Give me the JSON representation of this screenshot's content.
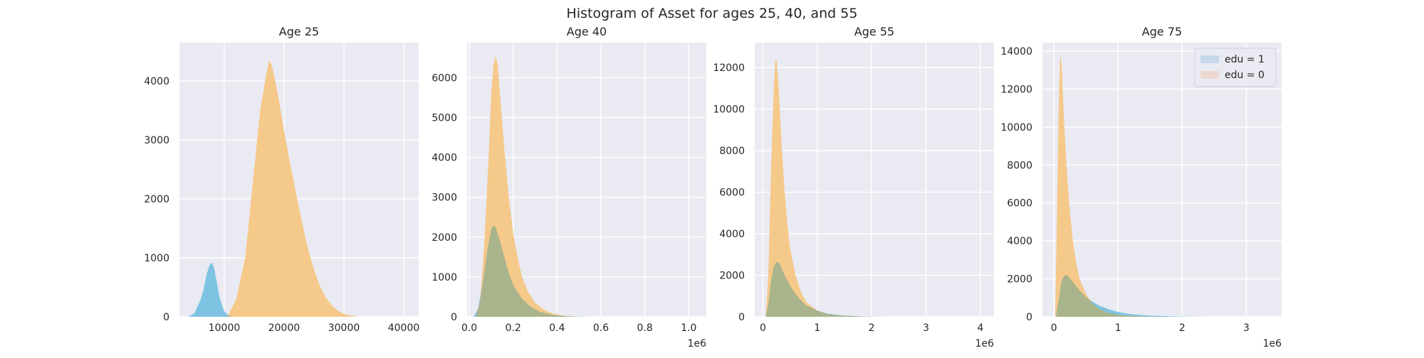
{
  "figure": {
    "suptitle": "Histogram of Asset for ages 25, 40, and 55"
  },
  "colors": {
    "edu1": "#7ec4e2",
    "edu0": "#f5c98a",
    "overlap": "#a9b48c",
    "plot_bg": "#eaeaf2",
    "grid": "#ffffff"
  },
  "legend": {
    "placement": "upper-right",
    "entries": [
      "edu = 1",
      "edu = 0"
    ],
    "swatch_colors": [
      "#c7d7ec",
      "#ecd8d2"
    ]
  },
  "chart_data": [
    {
      "type": "histogram",
      "title": "Age 25",
      "xlim": [
        2500,
        42500
      ],
      "ylim": [
        0,
        4650
      ],
      "xticks": [
        10000,
        20000,
        30000,
        40000
      ],
      "xtick_labels": [
        "10000",
        "20000",
        "30000",
        "40000"
      ],
      "yticks": [
        0,
        1000,
        2000,
        3000,
        4000
      ],
      "ytick_labels": [
        "0",
        "1000",
        "2000",
        "3000",
        "4000"
      ],
      "offset_label": "",
      "series": [
        {
          "name": "edu = 1",
          "x": [
            4000,
            5000,
            6000,
            6500,
            7000,
            7500,
            7900,
            8300,
            8800,
            9300,
            10000,
            10800,
            11500
          ],
          "y": [
            0,
            60,
            280,
            450,
            700,
            870,
            920,
            830,
            560,
            290,
            90,
            15,
            0
          ]
        },
        {
          "name": "edu = 0",
          "x": [
            10500,
            12000,
            13500,
            15000,
            16000,
            17000,
            17500,
            18000,
            19000,
            20000,
            21000,
            22000,
            23000,
            24000,
            25000,
            26000,
            27000,
            28000,
            29000,
            30000,
            31000,
            32500
          ],
          "y": [
            0,
            300,
            1000,
            2500,
            3500,
            4100,
            4350,
            4250,
            3750,
            3150,
            2600,
            2100,
            1600,
            1150,
            800,
            520,
            320,
            190,
            100,
            50,
            20,
            0
          ]
        }
      ]
    },
    {
      "type": "histogram",
      "title": "Age 40",
      "xlim": [
        -0.01,
        1.08
      ],
      "ylim": [
        0,
        6880
      ],
      "xticks": [
        0.0,
        0.2,
        0.4,
        0.6,
        0.8,
        1.0
      ],
      "xtick_labels": [
        "0.0",
        "0.2",
        "0.4",
        "0.6",
        "0.8",
        "1.0"
      ],
      "yticks": [
        0,
        1000,
        2000,
        3000,
        4000,
        5000,
        6000
      ],
      "ytick_labels": [
        "0",
        "1000",
        "2000",
        "3000",
        "4000",
        "5000",
        "6000"
      ],
      "offset_label": "1e6",
      "series": [
        {
          "name": "edu = 1",
          "x": [
            0.02,
            0.04,
            0.06,
            0.08,
            0.1,
            0.11,
            0.12,
            0.14,
            0.16,
            0.18,
            0.2,
            0.24,
            0.28,
            0.32,
            0.38,
            0.45,
            0.55
          ],
          "y": [
            0,
            200,
            800,
            1600,
            2200,
            2300,
            2250,
            1900,
            1500,
            1100,
            800,
            450,
            250,
            130,
            50,
            15,
            0
          ]
        },
        {
          "name": "edu = 0",
          "x": [
            0.03,
            0.05,
            0.07,
            0.09,
            0.1,
            0.11,
            0.12,
            0.13,
            0.14,
            0.16,
            0.18,
            0.2,
            0.22,
            0.24,
            0.27,
            0.3,
            0.34,
            0.38,
            0.44,
            0.5
          ],
          "y": [
            0,
            400,
            2000,
            4200,
            5600,
            6300,
            6550,
            6300,
            5600,
            4200,
            3000,
            2100,
            1500,
            1000,
            600,
            350,
            180,
            80,
            20,
            0
          ]
        }
      ]
    },
    {
      "type": "histogram",
      "title": "Age 55",
      "xlim": [
        -0.15,
        4.25
      ],
      "ylim": [
        0,
        13200
      ],
      "xticks": [
        0,
        1,
        2,
        3,
        4
      ],
      "xtick_labels": [
        "0",
        "1",
        "2",
        "3",
        "4"
      ],
      "yticks": [
        0,
        2000,
        4000,
        6000,
        8000,
        10000,
        12000
      ],
      "ytick_labels": [
        "0",
        "2000",
        "4000",
        "6000",
        "8000",
        "10000",
        "12000"
      ],
      "offset_label": "1e6",
      "series": [
        {
          "name": "edu = 1",
          "x": [
            0.05,
            0.1,
            0.15,
            0.2,
            0.25,
            0.3,
            0.35,
            0.4,
            0.5,
            0.6,
            0.7,
            0.8,
            1.0,
            1.2,
            1.5,
            1.8,
            2.2
          ],
          "y": [
            0,
            600,
            1700,
            2400,
            2650,
            2600,
            2300,
            2000,
            1500,
            1100,
            800,
            550,
            300,
            150,
            60,
            20,
            0
          ]
        },
        {
          "name": "edu = 0",
          "x": [
            0.05,
            0.1,
            0.15,
            0.2,
            0.23,
            0.25,
            0.28,
            0.3,
            0.35,
            0.4,
            0.45,
            0.5,
            0.6,
            0.7,
            0.8,
            1.0,
            1.2,
            1.5,
            2.0
          ],
          "y": [
            0,
            2000,
            7000,
            11000,
            12300,
            12400,
            11500,
            10500,
            8000,
            6000,
            4500,
            3300,
            2000,
            1200,
            700,
            300,
            120,
            40,
            0
          ]
        }
      ]
    },
    {
      "type": "histogram",
      "title": "Age 75",
      "xlim": [
        -0.18,
        3.55
      ],
      "ylim": [
        0,
        14450
      ],
      "xticks": [
        0,
        1,
        2,
        3
      ],
      "xtick_labels": [
        "0",
        "1",
        "2",
        "3"
      ],
      "yticks": [
        0,
        2000,
        4000,
        6000,
        8000,
        10000,
        12000,
        14000
      ],
      "ytick_labels": [
        "0",
        "2000",
        "4000",
        "6000",
        "8000",
        "10000",
        "12000",
        "14000"
      ],
      "offset_label": "1e6",
      "series": [
        {
          "name": "edu = 1",
          "x": [
            0.03,
            0.07,
            0.12,
            0.17,
            0.22,
            0.28,
            0.35,
            0.45,
            0.55,
            0.7,
            0.85,
            1.0,
            1.2,
            1.5,
            1.9,
            2.4
          ],
          "y": [
            0,
            800,
            1900,
            2200,
            2150,
            1900,
            1600,
            1200,
            900,
            600,
            400,
            250,
            140,
            60,
            20,
            0
          ]
        },
        {
          "name": "edu = 0",
          "x": [
            0.02,
            0.05,
            0.08,
            0.1,
            0.12,
            0.14,
            0.16,
            0.2,
            0.25,
            0.3,
            0.35,
            0.4,
            0.5,
            0.6,
            0.7,
            0.85,
            1.0,
            1.3,
            1.7
          ],
          "y": [
            0,
            6000,
            12000,
            13800,
            13300,
            11800,
            10200,
            7800,
            5500,
            3900,
            2800,
            2000,
            1200,
            700,
            420,
            200,
            100,
            30,
            0
          ]
        }
      ]
    }
  ]
}
